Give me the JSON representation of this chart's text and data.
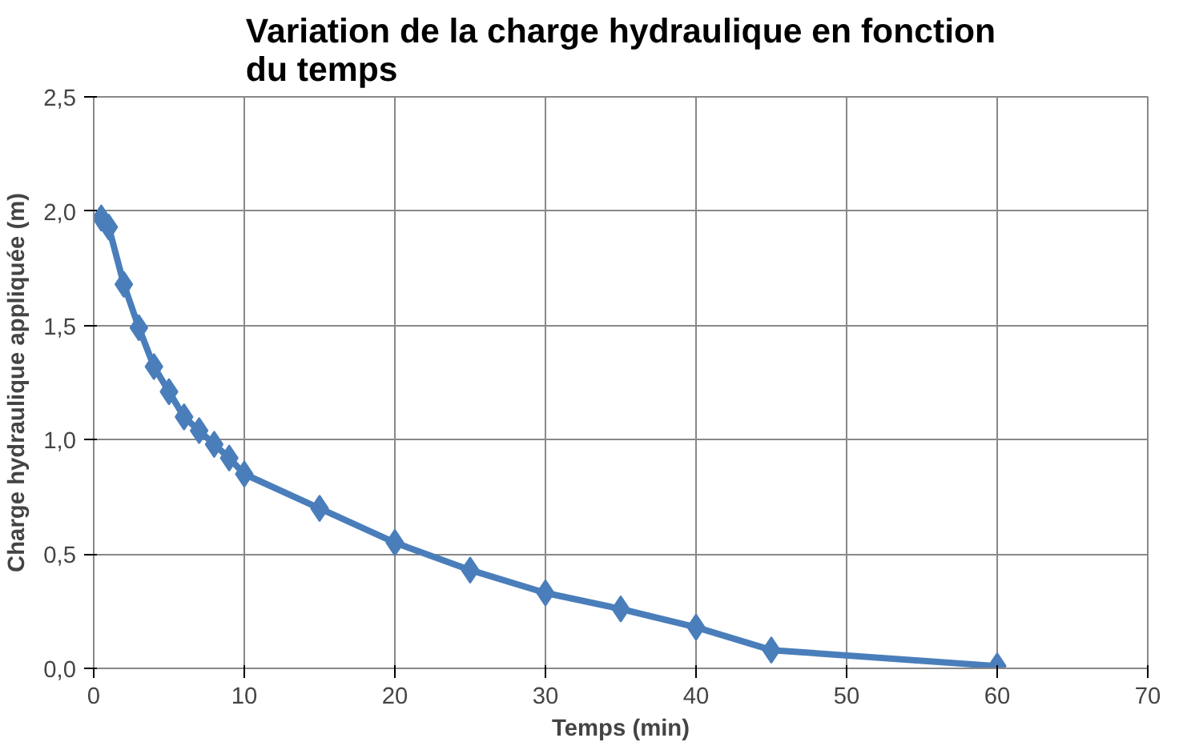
{
  "chart_data": {
    "type": "line",
    "title": "Variation de la charge hydraulique en fonction du temps",
    "xlabel": "Temps (min)",
    "ylabel": "Charge hydraulique appliquée (m)",
    "x": [
      0.5,
      1,
      2,
      3,
      4,
      5,
      6,
      7,
      8,
      9,
      10,
      15,
      20,
      25,
      30,
      35,
      40,
      45,
      60
    ],
    "series": [
      {
        "color": "#4a7ebb",
        "values": [
          1.97,
          1.93,
          1.68,
          1.49,
          1.32,
          1.21,
          1.1,
          1.04,
          0.98,
          0.92,
          0.85,
          0.7,
          0.55,
          0.43,
          0.33,
          0.26,
          0.18,
          0.08,
          0.01
        ]
      }
    ],
    "xlim": [
      0,
      70
    ],
    "xticks": [
      0,
      10,
      20,
      30,
      40,
      50,
      60,
      70
    ],
    "ylim": [
      0,
      2.5
    ],
    "yticks": [
      {
        "value": 0,
        "label": "0,0"
      },
      {
        "value": 0.5,
        "label": "0,5"
      },
      {
        "value": 1,
        "label": "1,0"
      },
      {
        "value": 1.5,
        "label": "1,5"
      },
      {
        "value": 2,
        "label": "2,0"
      },
      {
        "value": 2.5,
        "label": "2,5"
      }
    ],
    "grid": true,
    "marker": "diamond",
    "line_style": "solid"
  }
}
